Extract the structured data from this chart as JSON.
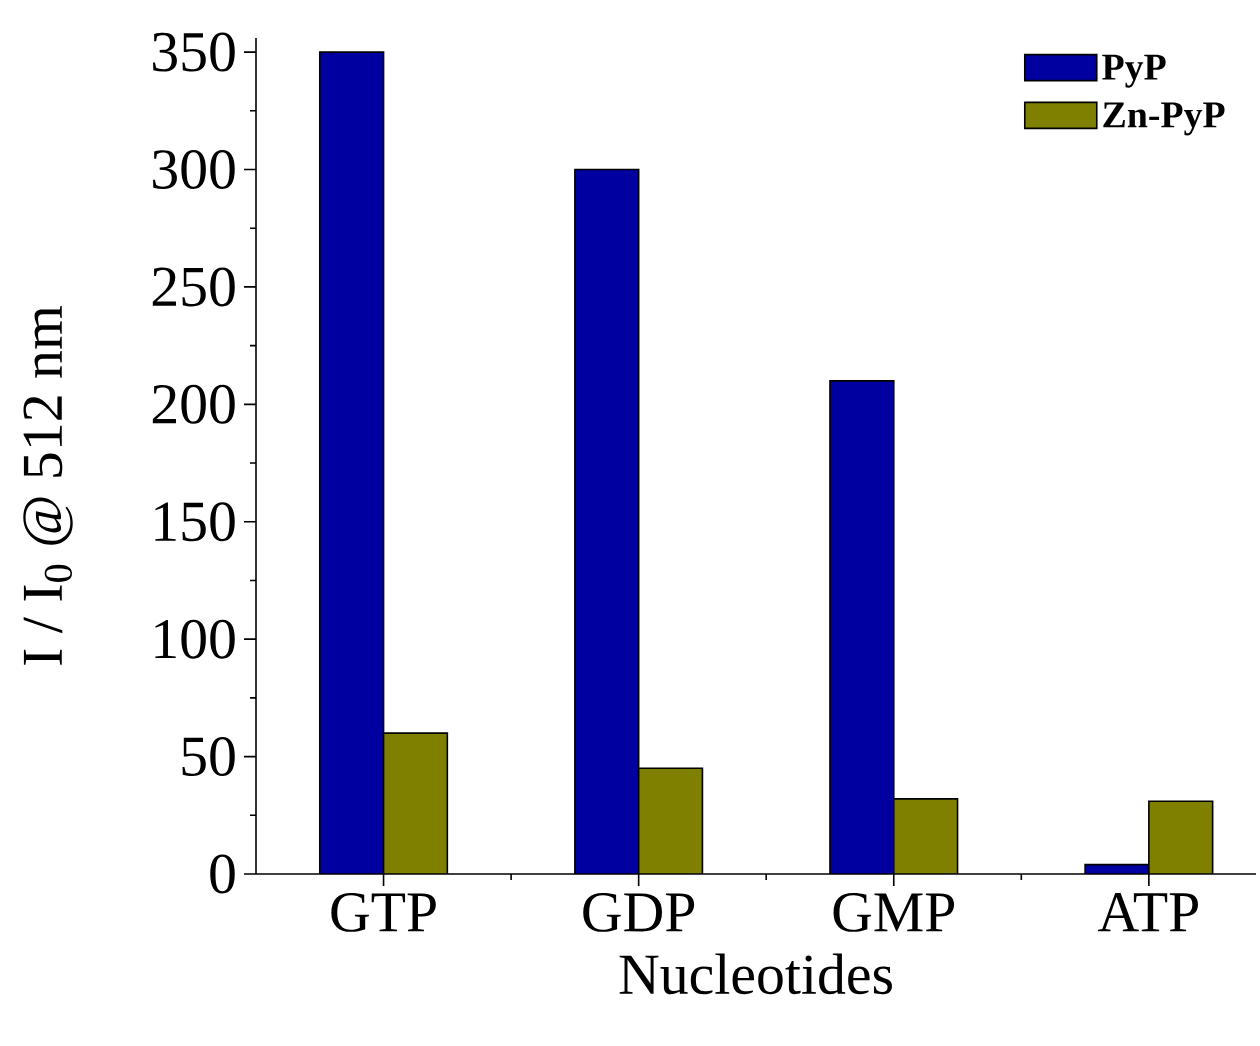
{
  "chart_data": {
    "type": "bar",
    "xlabel": "Nucleotides",
    "ylabel": "I / I$_{0}$ @ 512 nm",
    "categories": [
      "GTP",
      "GDP",
      "GMP",
      "ATP"
    ],
    "series": [
      {
        "name": "PyP",
        "color": "#0000a0",
        "values": [
          350,
          300,
          210,
          4
        ]
      },
      {
        "name": "Zn-PyP",
        "color": "#808000",
        "values": [
          60,
          45,
          32,
          31
        ]
      }
    ],
    "ylim": [
      0,
      356
    ],
    "yticks": [
      0,
      50,
      100,
      150,
      200,
      250,
      300,
      350
    ],
    "legend": "top right"
  }
}
